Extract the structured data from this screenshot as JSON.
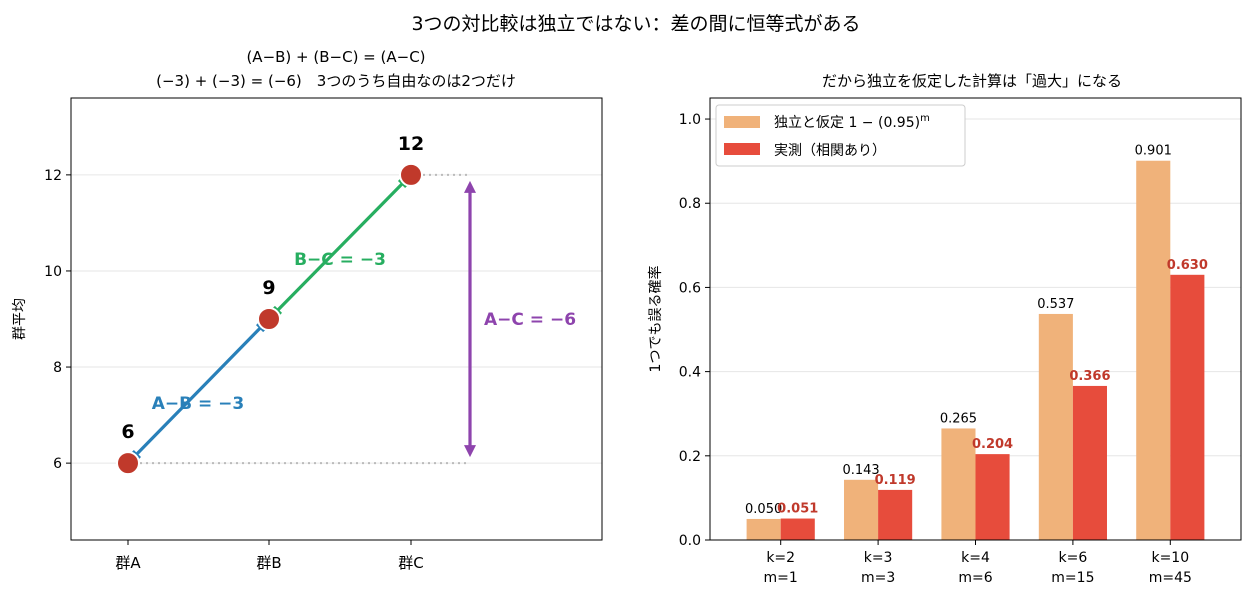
{
  "suptitle": "3つの対比較は独立ではない：差の間に恒等式がある",
  "chart_data": [
    {
      "type": "scatter",
      "title_line1": "(A−B) + (B−C) = (A−C)",
      "title_line2": "(−3) + (−3) = (−6)　3つのうち自由なのは2つだけ",
      "xlabel": "",
      "ylabel": "群平均",
      "categories": [
        "群A",
        "群B",
        "群C"
      ],
      "values": [
        6,
        9,
        12
      ],
      "value_labels": [
        "6",
        "9",
        "12"
      ],
      "ylim": [
        4.4,
        13.6
      ],
      "yticks": [
        6,
        8,
        10,
        12
      ],
      "ytick_labels": [
        "6",
        "8",
        "10",
        "12"
      ],
      "grid": true,
      "point_color": "#c0392b",
      "annotations": [
        {
          "label": "A−B = −3",
          "from": 0,
          "to": 1,
          "color": "#2980b9"
        },
        {
          "label": "B−C = −3",
          "from": 1,
          "to": 2,
          "color": "#27ae60"
        },
        {
          "label": "A−C = −6",
          "from": 0,
          "to": 2,
          "color": "#8e44ad"
        }
      ]
    },
    {
      "type": "bar",
      "title": "だから独立を仮定した計算は「過大」になる",
      "xlabel": "",
      "ylabel": "1つでも誤る確率",
      "categories": [
        {
          "line1": "k=2",
          "line2": "m=1"
        },
        {
          "line1": "k=3",
          "line2": "m=3"
        },
        {
          "line1": "k=4",
          "line2": "m=6"
        },
        {
          "line1": "k=6",
          "line2": "m=15"
        },
        {
          "line1": "k=10",
          "line2": "m=45"
        }
      ],
      "ylim": [
        0,
        1.05
      ],
      "yticks": [
        0.0,
        0.2,
        0.4,
        0.6,
        0.8,
        1.0
      ],
      "ytick_labels": [
        "0.0",
        "0.2",
        "0.4",
        "0.6",
        "0.8",
        "1.0"
      ],
      "grid": true,
      "legend_position": "top-left",
      "series": [
        {
          "name": "独立と仮定 1 − (0.95)",
          "name_sup": "m",
          "color": "#f0b27a",
          "values": [
            0.05,
            0.143,
            0.265,
            0.537,
            0.901
          ],
          "labels": [
            "0.050",
            "0.143",
            "0.265",
            "0.537",
            "0.901"
          ],
          "label_color": "#000000"
        },
        {
          "name": "実測（相関あり）",
          "color": "#e74c3c",
          "values": [
            0.051,
            0.119,
            0.204,
            0.366,
            0.63
          ],
          "labels": [
            "0.051",
            "0.119",
            "0.204",
            "0.366",
            "0.630"
          ],
          "label_color": "#c0392b"
        }
      ]
    }
  ]
}
